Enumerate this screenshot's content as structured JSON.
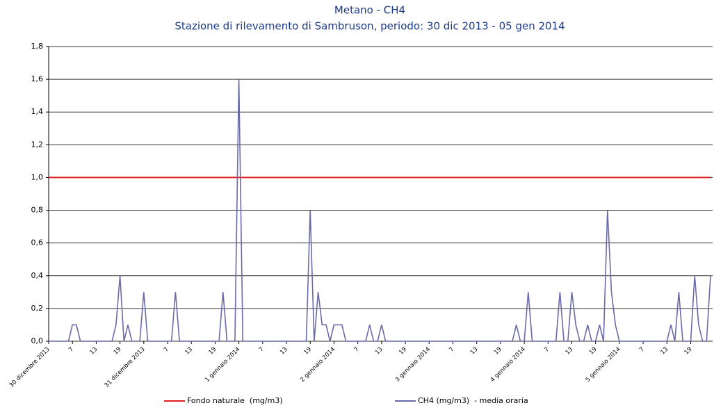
{
  "chart_data": {
    "type": "line",
    "title": "Metano - CH4",
    "subtitle": "Stazione di rilevamento di Sambruson, periodo: 30 dic 2013 - 05 gen 2014",
    "categories": [
      "30 dicembre 2013",
      null,
      null,
      null,
      null,
      null,
      "7",
      null,
      null,
      null,
      null,
      null,
      "13",
      null,
      null,
      null,
      null,
      null,
      "19",
      null,
      null,
      null,
      null,
      null,
      "31 dicembre 2013",
      null,
      null,
      null,
      null,
      null,
      "7",
      null,
      null,
      null,
      null,
      null,
      "13",
      null,
      null,
      null,
      null,
      null,
      "19",
      null,
      null,
      null,
      null,
      null,
      "1 gennaio 2014",
      null,
      null,
      null,
      null,
      null,
      "7",
      null,
      null,
      null,
      null,
      null,
      "13",
      null,
      null,
      null,
      null,
      null,
      "19",
      null,
      null,
      null,
      null,
      null,
      "2 gennaio 2014",
      null,
      null,
      null,
      null,
      null,
      "7",
      null,
      null,
      null,
      null,
      null,
      "13",
      null,
      null,
      null,
      null,
      null,
      "19",
      null,
      null,
      null,
      null,
      null,
      "3 gennaio 2014",
      null,
      null,
      null,
      null,
      null,
      "7",
      null,
      null,
      null,
      null,
      null,
      "13",
      null,
      null,
      null,
      null,
      null,
      "19",
      null,
      null,
      null,
      null,
      null,
      "4 gennaio 2014",
      null,
      null,
      null,
      null,
      null,
      "7",
      null,
      null,
      null,
      null,
      null,
      "13",
      null,
      null,
      null,
      null,
      null,
      "19",
      null,
      null,
      null,
      null,
      null,
      "5 gennaio 2014",
      null,
      null,
      null,
      null,
      null,
      "7",
      null,
      null,
      null,
      null,
      null,
      "13",
      null,
      null,
      null,
      null,
      null,
      "19",
      null,
      null,
      null,
      null,
      null
    ],
    "series": [
      {
        "name": "Fondo naturale  (mg/m3)",
        "color": "#e02020",
        "values": [
          1,
          1,
          1,
          1,
          1,
          1,
          1,
          1,
          1,
          1,
          1,
          1,
          1,
          1,
          1,
          1,
          1,
          1,
          1,
          1,
          1,
          1,
          1,
          1,
          1,
          1,
          1,
          1,
          1,
          1,
          1,
          1,
          1,
          1,
          1,
          1,
          1,
          1,
          1,
          1,
          1,
          1,
          1,
          1,
          1,
          1,
          1,
          1,
          1,
          1,
          1,
          1,
          1,
          1,
          1,
          1,
          1,
          1,
          1,
          1,
          1,
          1,
          1,
          1,
          1,
          1,
          1,
          1,
          1,
          1,
          1,
          1,
          1,
          1,
          1,
          1,
          1,
          1,
          1,
          1,
          1,
          1,
          1,
          1,
          1,
          1,
          1,
          1,
          1,
          1,
          1,
          1,
          1,
          1,
          1,
          1,
          1,
          1,
          1,
          1,
          1,
          1,
          1,
          1,
          1,
          1,
          1,
          1,
          1,
          1,
          1,
          1,
          1,
          1,
          1,
          1,
          1,
          1,
          1,
          1,
          1,
          1,
          1,
          1,
          1,
          1,
          1,
          1,
          1,
          1,
          1,
          1,
          1,
          1,
          1,
          1,
          1,
          1,
          1,
          1,
          1,
          1,
          1,
          1,
          1,
          1,
          1,
          1,
          1,
          1,
          1,
          1,
          1,
          1,
          1,
          1,
          1,
          1,
          1,
          1,
          1,
          1,
          1,
          1,
          1,
          1,
          1,
          1
        ]
      },
      {
        "name": "CH4 (mg/m3)  - media oraria",
        "color": "#6a6aa8",
        "values": [
          0,
          0,
          0,
          0,
          0,
          0,
          0.1,
          0.1,
          0,
          0,
          0,
          0,
          0,
          0,
          0,
          0,
          0,
          0.1,
          0.4,
          0,
          0.1,
          0,
          0,
          0,
          0.3,
          0,
          0,
          0,
          0,
          0,
          0,
          0,
          0.3,
          0,
          0,
          0,
          0,
          0,
          0,
          0,
          0,
          0,
          0,
          0,
          0.3,
          0,
          0,
          0,
          1.6,
          0,
          0,
          0,
          0,
          0,
          0,
          0,
          0,
          0,
          0,
          0,
          0,
          0,
          0,
          0,
          0,
          0,
          0.8,
          0,
          0.3,
          0.1,
          0.1,
          0,
          0.1,
          0.1,
          0.1,
          0,
          0,
          0,
          0,
          0,
          0,
          0.1,
          0,
          0,
          0.1,
          0,
          0,
          0,
          0,
          0,
          0,
          0,
          0,
          0,
          0,
          0,
          0,
          0,
          0,
          0,
          0,
          0,
          0,
          0,
          0,
          0,
          0,
          0,
          0,
          0,
          0,
          0,
          0,
          0,
          0,
          0,
          0,
          0,
          0.1,
          0,
          0,
          0.3,
          0,
          0,
          0,
          0,
          0,
          0,
          0,
          0.3,
          0,
          0,
          0.3,
          0.1,
          0,
          0,
          0.1,
          0,
          0,
          0.1,
          0,
          0.8,
          0.3,
          0.1,
          0,
          0,
          0,
          0,
          0,
          0,
          0,
          0,
          0,
          0,
          0,
          0,
          0,
          0.1,
          0,
          0.3,
          0,
          0,
          0,
          0.4,
          0.1,
          0,
          0,
          0.4
        ]
      }
    ],
    "ylim": [
      0,
      1.8
    ],
    "yticks": [
      {
        "value": 0,
        "label": "0,0"
      },
      {
        "value": 0.2,
        "label": "0,2"
      },
      {
        "value": 0.4,
        "label": "0,4"
      },
      {
        "value": 0.6,
        "label": "0,6"
      },
      {
        "value": 0.8,
        "label": "0,8"
      },
      {
        "value": 1,
        "label": "1,0"
      },
      {
        "value": 1.2,
        "label": "1,2"
      },
      {
        "value": 1.4,
        "label": "1,4"
      },
      {
        "value": 1.6,
        "label": "1,6"
      },
      {
        "value": 1.8,
        "label": "1,8"
      }
    ],
    "grid": true,
    "legend": "bottom"
  }
}
